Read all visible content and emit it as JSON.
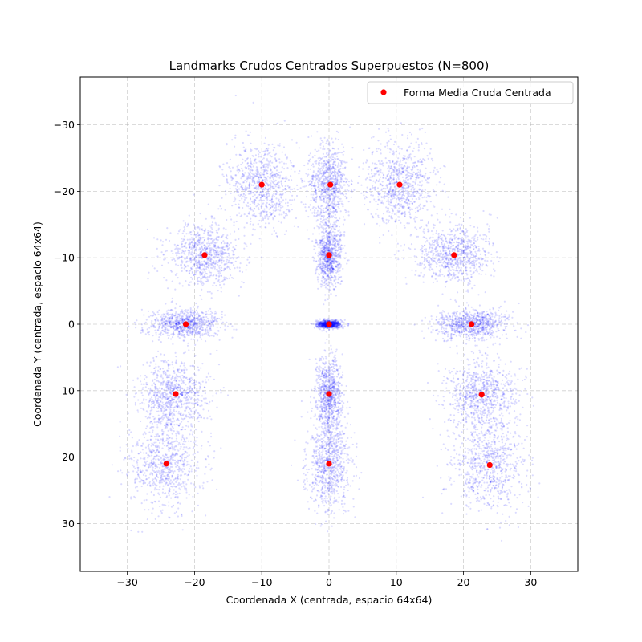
{
  "chart_data": {
    "type": "scatter",
    "title": "Landmarks Crudos Centrados Superpuestos (N=800)",
    "xlabel": "Coordenada X (centrada, espacio 64x64)",
    "ylabel": "Coordenada Y (centrada, espacio 64x64)",
    "xlim": [
      -37,
      37
    ],
    "ylim": [
      37.2,
      -37.2
    ],
    "y_inverted": true,
    "grid": true,
    "xticks": [
      -30,
      -20,
      -10,
      0,
      10,
      20,
      30
    ],
    "yticks": [
      -30,
      -20,
      -10,
      0,
      10,
      20,
      30
    ],
    "legend": {
      "position": "upper right",
      "entries": [
        "Forma Media Cruda Centrada"
      ]
    },
    "colors": {
      "raw_points": "#0000ff",
      "mean_shape": "#ff0000",
      "grid": "#b0b0b0"
    },
    "raw_sample_count": 800,
    "raw_clusters": [
      {
        "x": -10.0,
        "y": -21.0,
        "sx": 2.5,
        "sy": 3.2
      },
      {
        "x": 0.0,
        "y": -21.0,
        "sx": 1.5,
        "sy": 3.0
      },
      {
        "x": 10.5,
        "y": -21.0,
        "sx": 2.6,
        "sy": 3.2
      },
      {
        "x": -18.5,
        "y": -10.5,
        "sx": 2.8,
        "sy": 2.2
      },
      {
        "x": 0.0,
        "y": -10.5,
        "sx": 0.9,
        "sy": 2.5
      },
      {
        "x": 18.5,
        "y": -10.5,
        "sx": 2.8,
        "sy": 2.2
      },
      {
        "x": -21.5,
        "y": 0.0,
        "sx": 2.6,
        "sy": 1.1
      },
      {
        "x": 0.0,
        "y": 0.0,
        "sx": 0.9,
        "sy": 0.3
      },
      {
        "x": 21.2,
        "y": 0.0,
        "sx": 2.6,
        "sy": 1.1
      },
      {
        "x": -23.0,
        "y": 10.5,
        "sx": 2.6,
        "sy": 2.6
      },
      {
        "x": 0.0,
        "y": 10.5,
        "sx": 1.0,
        "sy": 2.7
      },
      {
        "x": 22.8,
        "y": 10.5,
        "sx": 2.6,
        "sy": 2.6
      },
      {
        "x": -24.2,
        "y": 21.0,
        "sx": 2.7,
        "sy": 3.5
      },
      {
        "x": 0.0,
        "y": 21.0,
        "sx": 1.6,
        "sy": 3.4
      },
      {
        "x": 23.8,
        "y": 21.2,
        "sx": 2.7,
        "sy": 3.5
      }
    ],
    "mean_shape": {
      "name": "Forma Media Cruda Centrada",
      "points": [
        {
          "x": -10.0,
          "y": -21.0
        },
        {
          "x": 0.2,
          "y": -21.0
        },
        {
          "x": 10.5,
          "y": -21.0
        },
        {
          "x": -18.5,
          "y": -10.4
        },
        {
          "x": 0.0,
          "y": -10.4
        },
        {
          "x": 18.6,
          "y": -10.4
        },
        {
          "x": -21.3,
          "y": 0.0
        },
        {
          "x": 0.0,
          "y": 0.0
        },
        {
          "x": 21.2,
          "y": 0.0
        },
        {
          "x": -22.8,
          "y": 10.5
        },
        {
          "x": 0.0,
          "y": 10.5
        },
        {
          "x": 22.7,
          "y": 10.6
        },
        {
          "x": -24.2,
          "y": 21.0
        },
        {
          "x": 0.0,
          "y": 21.0
        },
        {
          "x": 23.9,
          "y": 21.2
        }
      ]
    }
  }
}
